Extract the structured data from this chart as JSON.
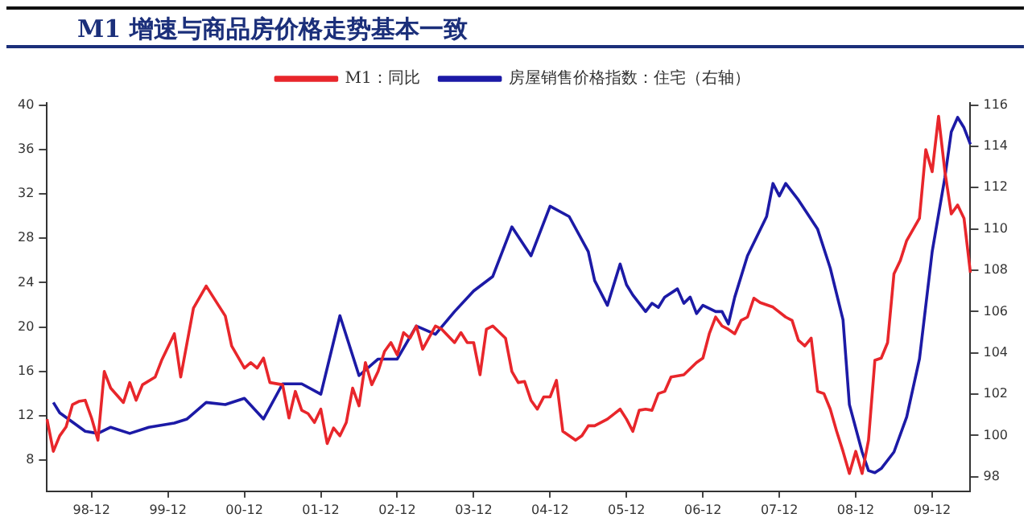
{
  "chart_data": {
    "type": "line",
    "title": "M1 增速与商品房价格走势基本一致",
    "legend": "top",
    "marker": "none",
    "line_style": "solid",
    "grid": false,
    "categories": [
      null,
      null,
      null,
      null,
      null,
      null,
      null,
      "98-12",
      null,
      null,
      null,
      null,
      null,
      null,
      null,
      null,
      null,
      null,
      null,
      "99-12",
      null,
      null,
      null,
      null,
      null,
      null,
      null,
      null,
      null,
      null,
      null,
      "00-12",
      null,
      null,
      null,
      null,
      null,
      null,
      null,
      null,
      null,
      null,
      null,
      "01-12",
      null,
      null,
      null,
      null,
      null,
      null,
      null,
      null,
      null,
      null,
      null,
      "02-12",
      null,
      null,
      null,
      null,
      null,
      null,
      null,
      null,
      null,
      null,
      null,
      "03-12",
      null,
      null,
      null,
      null,
      null,
      null,
      null,
      null,
      null,
      null,
      null,
      "04-12",
      null,
      null,
      null,
      null,
      null,
      null,
      null,
      null,
      null,
      null,
      null,
      "05-12",
      null,
      null,
      null,
      null,
      null,
      null,
      null,
      null,
      null,
      null,
      null,
      "06-12",
      null,
      null,
      null,
      null,
      null,
      null,
      null,
      null,
      null,
      null,
      null,
      "07-12",
      null,
      null,
      null,
      null,
      null,
      null,
      null,
      null,
      null,
      null,
      null,
      "08-12",
      null,
      null,
      null,
      null,
      null,
      null,
      null,
      null,
      null,
      null,
      null,
      "09-12",
      null,
      null,
      null,
      null,
      null,
      null
    ],
    "ylim": [
      5.2,
      40.2
    ],
    "yticks": [
      8,
      12,
      16,
      20,
      24,
      28,
      32,
      36,
      40
    ],
    "y2lim": [
      97.3,
      116.1
    ],
    "y2ticks": [
      98,
      100,
      102,
      104,
      106,
      108,
      110,
      112,
      114,
      116
    ],
    "series": [
      {
        "name": "M1：同比",
        "color": "#e8262b",
        "values": [
          11.7,
          8.8,
          10.2,
          11,
          13,
          13.3,
          13.4,
          11.8,
          9.8,
          16,
          14.5,
          null,
          13.2,
          15,
          13.4,
          14.8,
          null,
          15.5,
          17,
          null,
          19.4,
          15.5,
          null,
          21.7,
          null,
          23.7,
          null,
          null,
          21,
          18.3,
          null,
          16.3,
          16.8,
          16.3,
          17.2,
          15,
          null,
          14.8,
          11.8,
          14.2,
          12.5,
          12.2,
          11.4,
          12.6,
          9.5,
          10.9,
          10.2,
          11.4,
          14.5,
          12.9,
          16.8,
          14.8,
          16,
          17.8,
          18.6,
          17.5,
          19.5,
          19,
          20.1,
          18,
          null,
          20.1,
          19.8,
          null,
          18.6,
          19.5,
          18.6,
          18.6,
          15.7,
          19.8,
          20.1,
          null,
          19,
          16,
          15,
          15.1,
          13.4,
          12.6,
          13.7,
          13.7,
          15.2,
          10.6,
          null,
          9.8,
          10.2,
          11.1,
          11.1,
          null,
          11.7,
          null,
          12.6,
          11.7,
          10.6,
          12.5,
          12.6,
          12.5,
          14,
          14.2,
          15.5,
          null,
          15.7,
          null,
          16.8,
          17.2,
          19.4,
          20.9,
          20.1,
          19.8,
          19.4,
          20.6,
          20.9,
          22.6,
          22.2,
          null,
          21.8,
          null,
          20.9,
          20.6,
          18.8,
          18.3,
          19,
          14.2,
          14,
          12.6,
          10.6,
          8.8,
          6.8,
          8.8,
          6.8,
          9.8,
          17,
          17.2,
          18.6,
          24.8,
          26,
          27.8,
          null,
          29.8,
          36,
          34,
          39,
          34,
          30.2,
          31,
          29.8,
          24.9
        ]
      },
      {
        "name": "房屋销售价格指数：住宅（右轴）",
        "color": "#1c1aa6",
        "axis": "y2",
        "values": [
          null,
          101.6,
          101.1,
          null,
          null,
          null,
          100.2,
          null,
          100.1,
          null,
          100.4,
          null,
          null,
          100.1,
          null,
          null,
          100.4,
          null,
          null,
          null,
          100.6,
          null,
          100.8,
          null,
          null,
          101.6,
          null,
          null,
          101.5,
          null,
          null,
          101.8,
          null,
          null,
          100.8,
          null,
          null,
          102.5,
          null,
          null,
          102.5,
          null,
          null,
          102,
          null,
          null,
          105.8,
          null,
          null,
          102.9,
          null,
          null,
          103.7,
          null,
          null,
          103.7,
          null,
          null,
          105.3,
          null,
          null,
          104.9,
          null,
          null,
          106,
          null,
          null,
          107,
          null,
          null,
          107.7,
          null,
          null,
          110.1,
          null,
          null,
          108.7,
          null,
          null,
          111.1,
          null,
          null,
          110.6,
          null,
          null,
          108.9,
          107.5,
          null,
          106.3,
          null,
          108.3,
          107.3,
          106.8,
          null,
          106,
          106.4,
          106.2,
          106.7,
          null,
          107.1,
          106.4,
          106.7,
          105.9,
          106.3,
          null,
          106,
          106,
          105.4,
          106.7,
          null,
          108.7,
          null,
          null,
          110.6,
          112.2,
          111.6,
          112.2,
          null,
          111.4,
          null,
          null,
          110,
          null,
          108.1,
          null,
          105.6,
          101.5,
          null,
          99.2,
          98.3,
          98.2,
          98.4,
          null,
          99.2,
          null,
          100.9,
          null,
          103.7,
          null,
          108.9,
          null,
          112.5,
          114.7,
          115.4,
          114.9,
          114.1
        ]
      }
    ]
  }
}
